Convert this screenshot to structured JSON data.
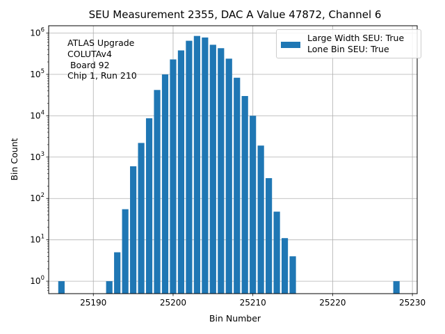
{
  "chart_data": {
    "type": "bar",
    "title": "SEU Measurement 2355, DAC A Value 47872, Channel 6",
    "xlabel": "Bin Number",
    "ylabel": "Bin Count",
    "yscale": "log",
    "xlim": [
      25184.4,
      25230.6
    ],
    "ylim": [
      0.5,
      1500000
    ],
    "xticks": [
      25190,
      25200,
      25210,
      25220,
      25230
    ],
    "yticks": [
      {
        "value": 1,
        "label": "10^0"
      },
      {
        "value": 10,
        "label": "10^1"
      },
      {
        "value": 100,
        "label": "10^2"
      },
      {
        "value": 1000,
        "label": "10^3"
      },
      {
        "value": 10000,
        "label": "10^4"
      },
      {
        "value": 100000,
        "label": "10^5"
      },
      {
        "value": 1000000,
        "label": "10^6"
      }
    ],
    "grid": true,
    "legend_position": "top-right",
    "color": "#1f77b4",
    "x": [
      25186,
      25192,
      25193,
      25194,
      25195,
      25196,
      25197,
      25198,
      25199,
      25200,
      25201,
      25202,
      25203,
      25204,
      25205,
      25206,
      25207,
      25208,
      25209,
      25210,
      25211,
      25212,
      25213,
      25214,
      25215,
      25228
    ],
    "values": [
      1,
      1,
      5,
      55,
      600,
      2200,
      8700,
      42000,
      100000,
      230000,
      380000,
      650000,
      850000,
      780000,
      520000,
      430000,
      240000,
      83000,
      30000,
      10000,
      1900,
      310,
      48,
      11,
      4,
      1
    ]
  },
  "legend": {
    "line1": "Large Width SEU: True",
    "line2": "Lone Bin SEU: True"
  },
  "annotation": {
    "line1": "ATLAS Upgrade",
    "line2": "COLUTAv4",
    "line3": " Board 92",
    "line4": "Chip 1, Run 210"
  }
}
